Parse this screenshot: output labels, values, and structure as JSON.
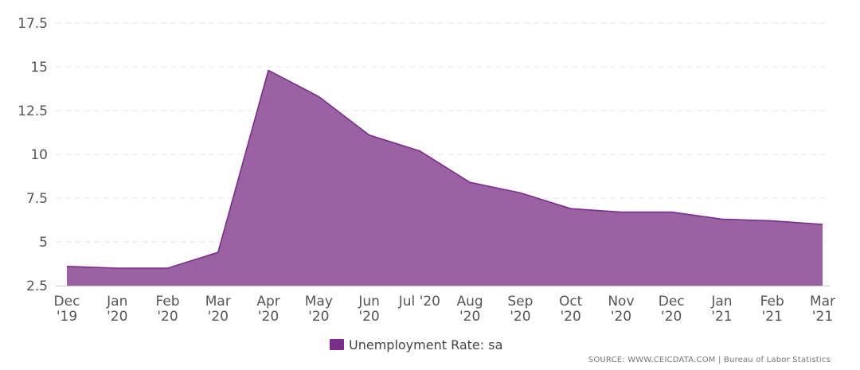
{
  "colors": {
    "series": "#7b2d8b",
    "area": "#9a62a3",
    "grid": "#e3e3e3",
    "text": "#555555"
  },
  "chart_data": {
    "type": "area",
    "title": "",
    "xlabel": "",
    "ylabel": "",
    "ylim": [
      2.5,
      17.5
    ],
    "yticks": [
      "2.5",
      "5",
      "7.5",
      "10",
      "12.5",
      "15",
      "17.5"
    ],
    "ytick_values": [
      2.5,
      5,
      7.5,
      10,
      12.5,
      15,
      17.5
    ],
    "categories": [
      "Dec '19",
      "Jan '20",
      "Feb '20",
      "Mar '20",
      "Apr '20",
      "May '20",
      "Jun '20",
      "Jul '20",
      "Aug '20",
      "Sep '20",
      "Oct '20",
      "Nov '20",
      "Dec '20",
      "Jan '21",
      "Feb '21",
      "Mar '21"
    ],
    "category_labels": [
      [
        "Dec",
        "'19"
      ],
      [
        "Jan",
        "'20"
      ],
      [
        "Feb",
        "'20"
      ],
      [
        "Mar",
        "'20"
      ],
      [
        "Apr",
        "'20"
      ],
      [
        "May",
        "'20"
      ],
      [
        "Jun",
        "'20"
      ],
      [
        "Jul '20"
      ],
      [
        "Aug",
        "'20"
      ],
      [
        "Sep",
        "'20"
      ],
      [
        "Oct",
        "'20"
      ],
      [
        "Nov",
        "'20"
      ],
      [
        "Dec",
        "'20"
      ],
      [
        "Jan",
        "'21"
      ],
      [
        "Feb",
        "'21"
      ],
      [
        "Mar",
        "'21"
      ]
    ],
    "grid": true,
    "legend_position": "bottom-center",
    "series": [
      {
        "name": "Unemployment Rate: sa",
        "values": [
          3.6,
          3.5,
          3.5,
          4.4,
          14.8,
          13.3,
          11.1,
          10.2,
          8.4,
          7.8,
          6.9,
          6.7,
          6.7,
          6.3,
          6.2,
          6.0
        ]
      }
    ]
  },
  "source": {
    "text": "SOURCE: WWW.CEICDATA.COM | Bureau of Labor Statistics"
  }
}
